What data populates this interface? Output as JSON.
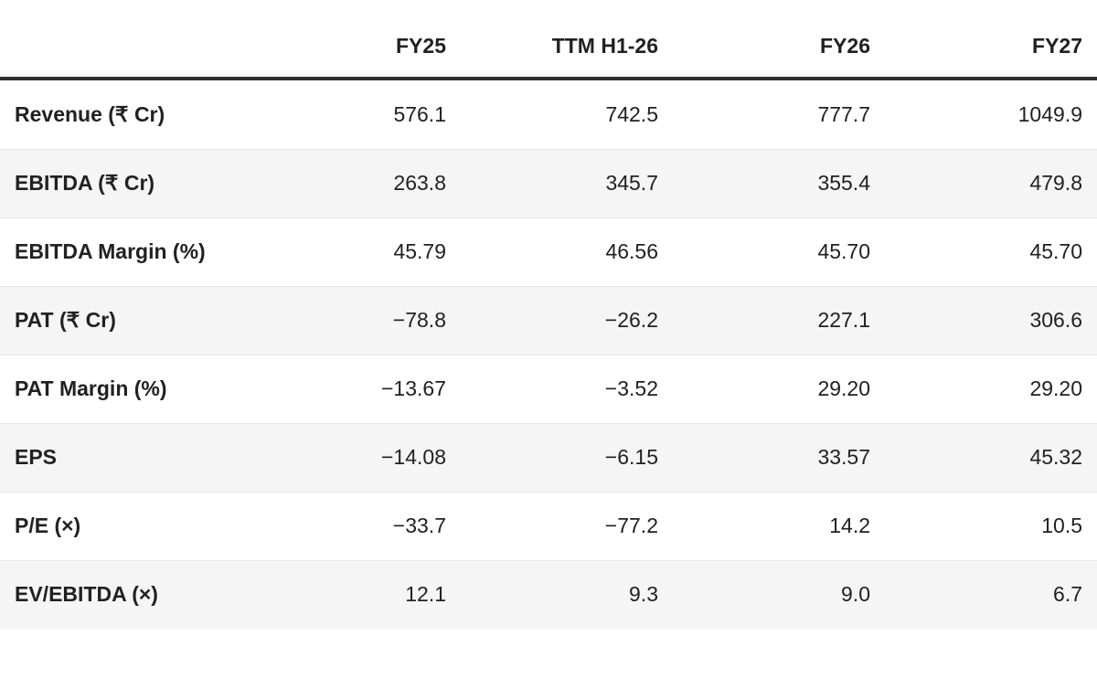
{
  "chart_data": {
    "type": "table",
    "title": "",
    "columns": [
      "",
      "FY25",
      "TTM H1-26",
      "FY26",
      "FY27"
    ],
    "rows": [
      {
        "label": "Revenue (₹ Cr)",
        "values": [
          "576.1",
          "742.5",
          "777.7",
          "1049.9"
        ]
      },
      {
        "label": "EBITDA (₹ Cr)",
        "values": [
          "263.8",
          "345.7",
          "355.4",
          "479.8"
        ]
      },
      {
        "label": "EBITDA Margin (%)",
        "values": [
          "45.79",
          "46.56",
          "45.70",
          "45.70"
        ]
      },
      {
        "label": "PAT (₹ Cr)",
        "values": [
          "−78.8",
          "−26.2",
          "227.1",
          "306.6"
        ]
      },
      {
        "label": "PAT Margin (%)",
        "values": [
          "−13.67",
          "−3.52",
          "29.20",
          "29.20"
        ]
      },
      {
        "label": "EPS",
        "values": [
          "−14.08",
          "−6.15",
          "33.57",
          "45.32"
        ]
      },
      {
        "label": "P/E (×)",
        "values": [
          "−33.7",
          "−77.2",
          "14.2",
          "10.5"
        ]
      },
      {
        "label": "EV/EBITDA (×)",
        "values": [
          "12.1",
          "9.3",
          "9.0",
          "6.7"
        ]
      }
    ],
    "layout": {
      "striped_row_indices": [
        1,
        3,
        5,
        7
      ],
      "numeric_alignment": "right"
    },
    "colors": {
      "text": "#212121",
      "header_rule": "#2d2f31",
      "stripe_background": "#f5f5f5",
      "row_divider": "#e7e7e7",
      "background": "#ffffff"
    }
  }
}
